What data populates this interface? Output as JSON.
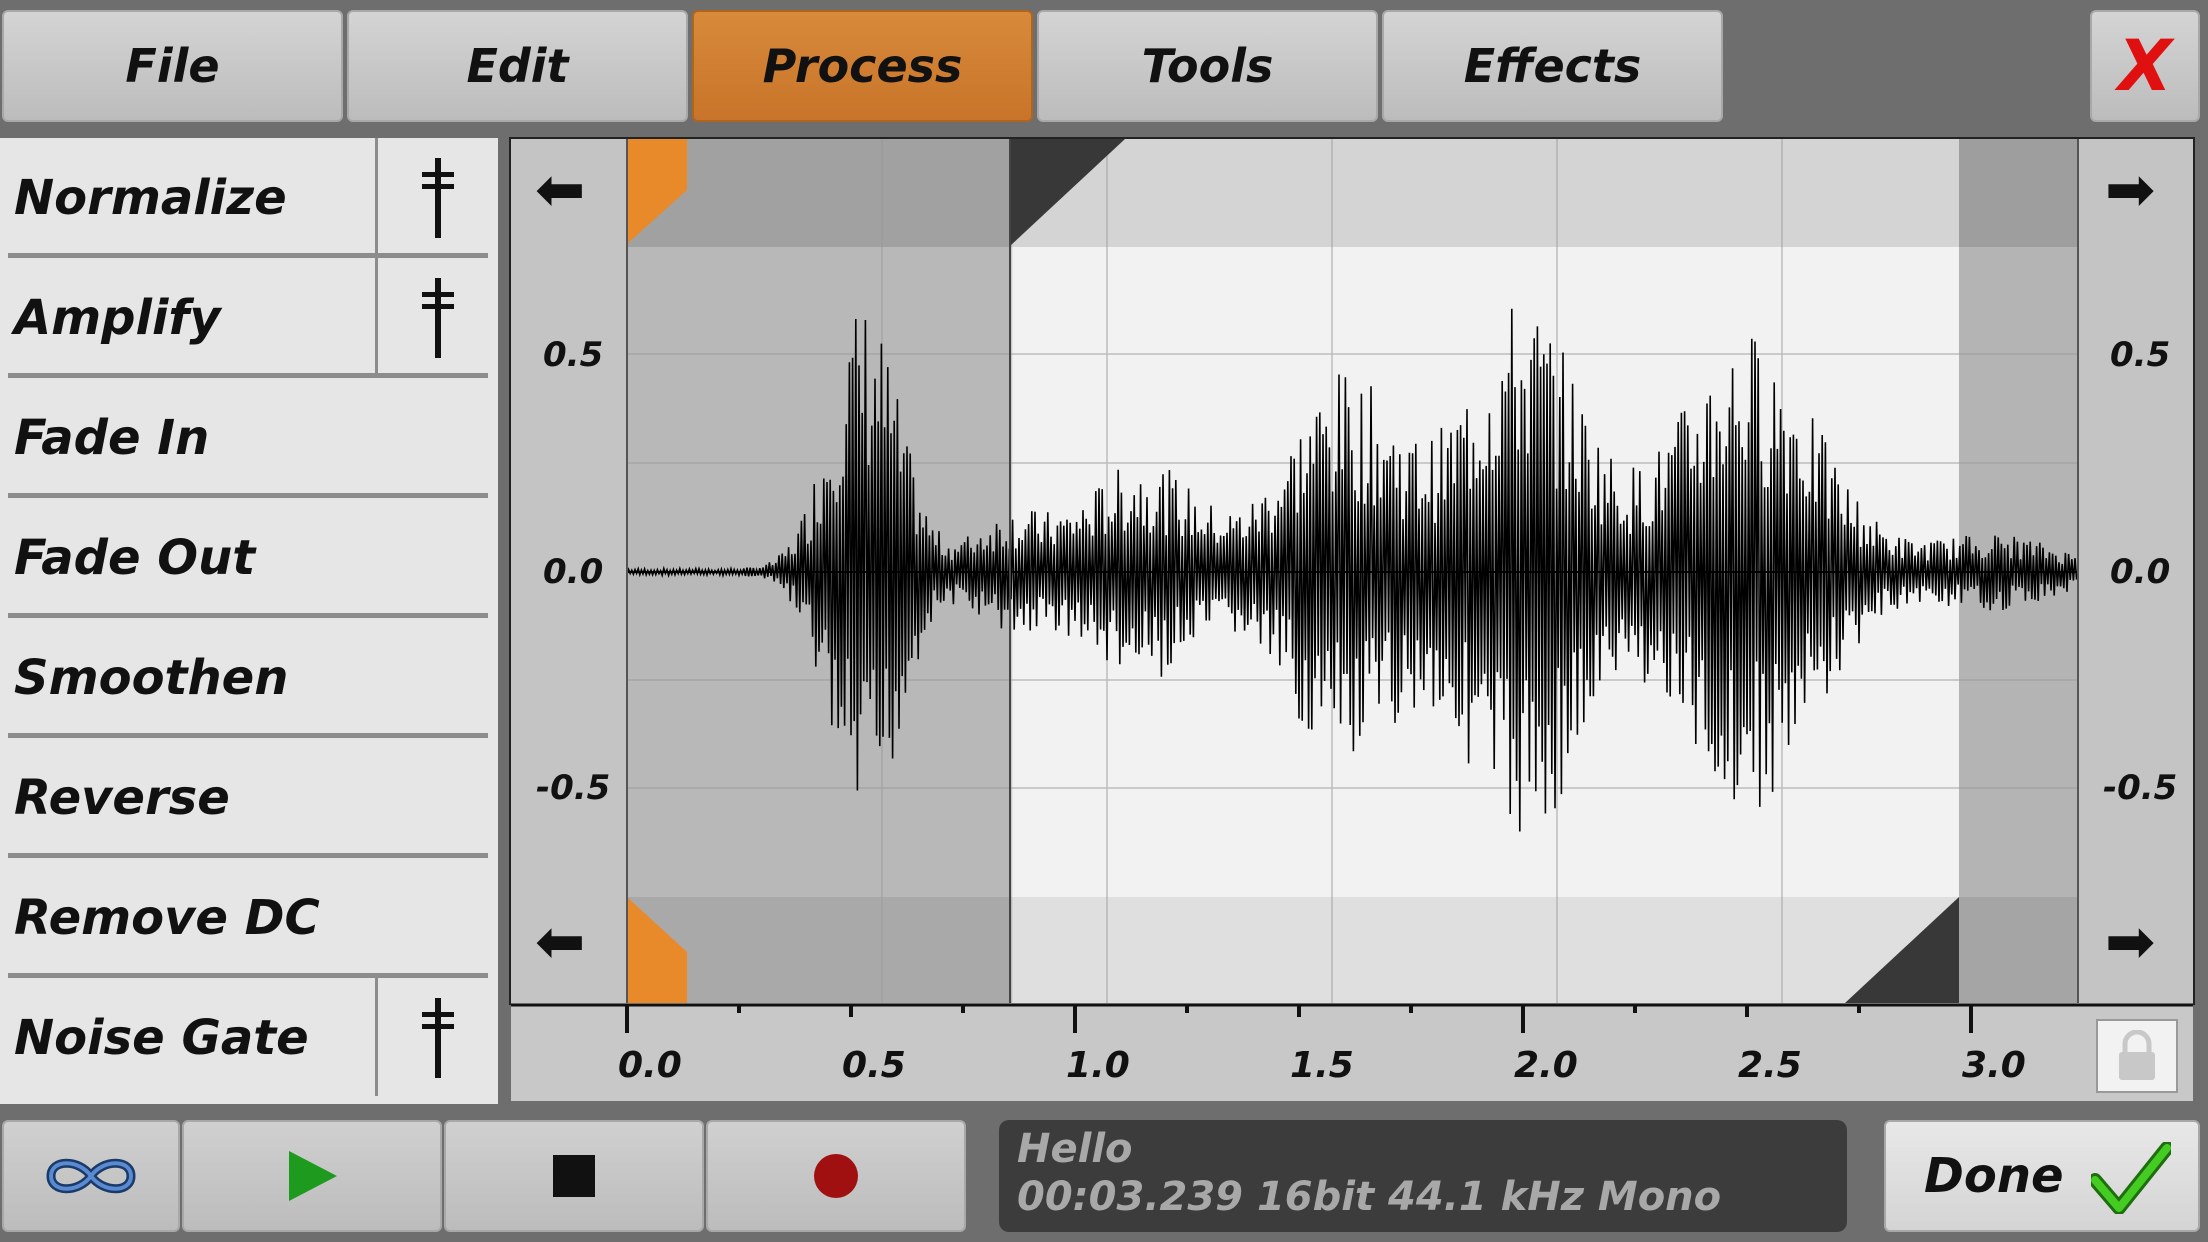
{
  "menu": [
    {
      "label": "File",
      "active": false
    },
    {
      "label": "Edit",
      "active": false
    },
    {
      "label": "Process",
      "active": true
    },
    {
      "label": "Tools",
      "active": false
    },
    {
      "label": "Effects",
      "active": false
    }
  ],
  "close_label": "X",
  "process_items": [
    {
      "label": "Normalize",
      "has_settings": true
    },
    {
      "label": "Amplify",
      "has_settings": true
    },
    {
      "label": "Fade In",
      "has_settings": false
    },
    {
      "label": "Fade Out",
      "has_settings": false
    },
    {
      "label": "Smoothen",
      "has_settings": false
    },
    {
      "label": "Reverse",
      "has_settings": false
    },
    {
      "label": "Remove DC",
      "has_settings": false
    },
    {
      "label": "Noise Gate",
      "has_settings": true
    }
  ],
  "waveform": {
    "y_ticks": [
      "0.5",
      "0.0",
      "-0.5"
    ],
    "x_ticks": [
      "0.0",
      "0.5",
      "1.0",
      "1.5",
      "2.0",
      "2.5",
      "3.0"
    ],
    "duration_s": 3.239,
    "selection_start_s": 0.86,
    "selection_end_s": 2.98
  },
  "transport": {
    "loop_icon": "infinity-icon",
    "play_icon": "play-icon",
    "stop_icon": "stop-icon",
    "record_icon": "record-icon"
  },
  "info": {
    "name": "Hello",
    "details": "00:03.239 16bit 44.1 kHz Mono"
  },
  "done_label": "Done",
  "colors": {
    "accent": "#d07a30",
    "play": "#1e9a1e",
    "record": "#a01010",
    "done_check": "#33bb22",
    "close": "#e01010"
  }
}
